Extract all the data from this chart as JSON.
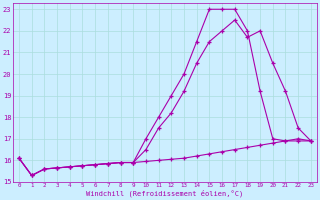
{
  "xlabel": "Windchill (Refroidissement éolien,°C)",
  "background_color": "#cceeff",
  "grid_color": "#aadddd",
  "line_color": "#aa00aa",
  "xlim": [
    -0.5,
    23.5
  ],
  "ylim": [
    15,
    23.3
  ],
  "x_ticks": [
    0,
    1,
    2,
    3,
    4,
    5,
    6,
    7,
    8,
    9,
    10,
    11,
    12,
    13,
    14,
    15,
    16,
    17,
    18,
    19,
    20,
    21,
    22,
    23
  ],
  "y_ticks": [
    15,
    16,
    17,
    18,
    19,
    20,
    21,
    22,
    23
  ],
  "line1_x": [
    0,
    1,
    2,
    3,
    4,
    5,
    6,
    7,
    8,
    9,
    10,
    11,
    12,
    13,
    14,
    15,
    16,
    17,
    18,
    19,
    20,
    21,
    22,
    23
  ],
  "line1_y": [
    16.1,
    15.3,
    15.6,
    15.65,
    15.7,
    15.75,
    15.8,
    15.85,
    15.9,
    15.9,
    17.0,
    18.0,
    19.0,
    20.0,
    21.5,
    23.0,
    23.0,
    23.0,
    22.0,
    19.2,
    17.0,
    16.9,
    16.9,
    16.9
  ],
  "line2_x": [
    0,
    1,
    2,
    3,
    4,
    5,
    6,
    7,
    8,
    9,
    10,
    11,
    12,
    13,
    14,
    15,
    16,
    17,
    18,
    19,
    20,
    21,
    22,
    23
  ],
  "line2_y": [
    16.1,
    15.3,
    15.6,
    15.65,
    15.7,
    15.75,
    15.8,
    15.85,
    15.9,
    15.9,
    16.5,
    17.5,
    18.2,
    19.2,
    20.5,
    21.5,
    22.0,
    22.5,
    21.7,
    22.0,
    20.5,
    19.2,
    17.5,
    16.9
  ],
  "line3_x": [
    0,
    1,
    2,
    3,
    4,
    5,
    6,
    7,
    8,
    9,
    10,
    11,
    12,
    13,
    14,
    15,
    16,
    17,
    18,
    19,
    20,
    21,
    22,
    23
  ],
  "line3_y": [
    16.1,
    15.3,
    15.6,
    15.65,
    15.7,
    15.75,
    15.8,
    15.85,
    15.9,
    15.9,
    15.95,
    16.0,
    16.05,
    16.1,
    16.2,
    16.3,
    16.4,
    16.5,
    16.6,
    16.7,
    16.8,
    16.9,
    17.0,
    16.9
  ]
}
